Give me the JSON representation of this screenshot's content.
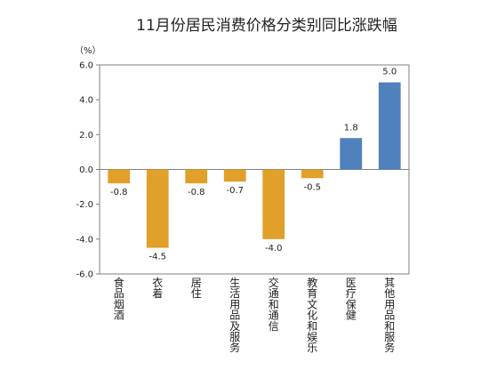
{
  "chart_data": {
    "type": "bar",
    "title": "11月份居民消费价格分类别同比涨跌幅",
    "unit_label": "（%）",
    "categories": [
      "食品烟酒",
      "衣着",
      "居住",
      "生活用品及服务",
      "交通和通信",
      "教育文化和娱乐",
      "医疗保健",
      "其他用品和服务"
    ],
    "values": [
      -0.8,
      -4.5,
      -0.8,
      -0.7,
      -4.0,
      -0.5,
      1.8,
      5.0
    ],
    "value_labels": [
      "-0.8",
      "-4.5",
      "-0.8",
      "-0.7",
      "-4.0",
      "-0.5",
      "1.8",
      "5.0"
    ],
    "ylim": [
      -6.0,
      6.0
    ],
    "yticks": [
      6.0,
      4.0,
      2.0,
      0.0,
      -2.0,
      -4.0,
      -6.0
    ],
    "ytick_labels": [
      "6.0",
      "4.0",
      "2.0",
      "0.0",
      "-2.0",
      "-4.0",
      "-6.0"
    ],
    "grid": false,
    "colors": {
      "negative": "#E0A02A",
      "positive": "#4F81BD",
      "axis": "#7f7f7f"
    }
  }
}
